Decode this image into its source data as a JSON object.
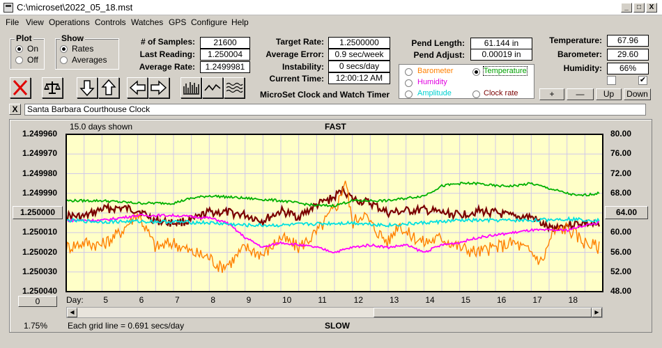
{
  "window": {
    "title": "C:\\microset\\2022_05_18.mst",
    "min": "_",
    "max": "□",
    "close": "X"
  },
  "menu": [
    "File",
    "View",
    "Operations",
    "Controls",
    "Watches",
    "GPS",
    "Configure",
    "Help"
  ],
  "plot_group": {
    "title": "Plot",
    "options": [
      "On",
      "Off"
    ],
    "selected": "On"
  },
  "show_group": {
    "title": "Show",
    "options": [
      "Rates",
      "Averages"
    ],
    "selected": "Rates"
  },
  "readings": {
    "samples_label": "# of Samples:",
    "samples": "21600",
    "last_label": "Last Reading:",
    "last": "1.250004",
    "avg_label": "Average Rate:",
    "avg": "1.2499981",
    "target_label": "Target Rate:",
    "target": "1.2500000",
    "avgerr_label": "Average Error:",
    "avgerr": "0.9 sec/week",
    "instab_label": "Instability:",
    "instab": "0 secs/day",
    "time_label": "Current Time:",
    "time": "12:00:12 AM",
    "pendlen_label": "Pend Length:",
    "pendlen": "61.144 in",
    "pendadj_label": "Pend Adjust:",
    "pendadj": "0.00019 in",
    "temp_label": "Temperature:",
    "temp": "67.96",
    "baro_label": "Barometer:",
    "baro": "29.60",
    "hum_label": "Humidity:",
    "hum": "66%"
  },
  "app_subtitle": "MicroSet Clock and Watch Timer",
  "overlay_options": {
    "barometer": "Barometer",
    "temperature": "Temperature",
    "humidity": "Humidity",
    "amplitude": "Amplitude",
    "clockrate": "Clock rate",
    "selected": "Temperature"
  },
  "step_buttons": [
    "+",
    "—",
    "Up",
    "Down"
  ],
  "clock_name": "Santa Barbara Courthouse Clock",
  "clear_label": "X",
  "colors": {
    "rate": "#7a0000",
    "barometer": "#ff8000",
    "temperature": "#00b000",
    "humidity": "#ff00ff",
    "amplitude": "#00e0e0",
    "plot_bg": "#ffffc8",
    "grid": "#d0c8e8"
  },
  "chart_data": {
    "type": "line",
    "days_shown": "15.0 days shown",
    "top_label": "FAST",
    "bottom_label": "SLOW",
    "x_axis_label": "Day:",
    "x_ticks": [
      "5",
      "6",
      "7",
      "8",
      "9",
      "10",
      "11",
      "12",
      "13",
      "14",
      "15",
      "16",
      "17",
      "18"
    ],
    "xlim": [
      4.0,
      19.0
    ],
    "left_axis": {
      "ticks": [
        "1.249960",
        "1.249970",
        "1.249980",
        "1.249990",
        "1.250000",
        "1.250010",
        "1.250020",
        "1.250030",
        "1.250040"
      ],
      "ylim": [
        1.24996,
        1.25004
      ],
      "inverted": true
    },
    "right_axis": {
      "ticks": [
        "80.00",
        "76.00",
        "72.00",
        "68.00",
        "64.00",
        "60.00",
        "56.00",
        "52.00",
        "48.00"
      ],
      "ylim": [
        48,
        80
      ]
    },
    "left_marker": "1.250000",
    "right_marker": "64.00",
    "bottom_left_value": "0",
    "corner_value": "1.75%",
    "grid_note": "Each grid line = 0.691 secs/day",
    "series": [
      {
        "name": "Rate",
        "axis": "left",
        "color": "#7a0000",
        "x": [
          4.0,
          4.5,
          5.0,
          5.5,
          6.0,
          6.5,
          7.0,
          7.5,
          8.0,
          8.5,
          9.0,
          9.5,
          10.0,
          10.5,
          11.0,
          11.5,
          11.75,
          12.0,
          12.5,
          13.0,
          13.5,
          14.0,
          14.5,
          15.0,
          15.5,
          16.0,
          16.5,
          17.0,
          17.5,
          18.0,
          18.5,
          18.9
        ],
        "y": [
          1.2500015,
          1.250002,
          1.249998,
          1.2499975,
          1.2499985,
          1.250004,
          1.250005,
          1.250004,
          1.2499995,
          1.2499998,
          1.250001,
          1.250004,
          1.249999,
          1.250002,
          1.249996,
          1.249992,
          1.249988,
          1.249993,
          1.249995,
          1.25,
          1.249999,
          1.2499985,
          1.25,
          1.250001,
          1.249999,
          1.25,
          1.250002,
          1.250002,
          1.250008,
          1.250006,
          1.250005,
          1.250007
        ]
      },
      {
        "name": "Barometer",
        "axis": "right",
        "color": "#ff8000",
        "x": [
          4.0,
          4.5,
          5.0,
          5.5,
          6.0,
          6.5,
          7.0,
          7.5,
          8.0,
          8.3,
          8.6,
          9.0,
          9.5,
          10.0,
          10.5,
          11.0,
          11.3,
          11.6,
          11.8,
          12.0,
          12.3,
          12.6,
          13.0,
          13.3,
          13.5,
          14.0,
          14.5,
          15.0,
          15.5,
          16.0,
          16.5,
          17.0,
          17.3,
          17.6,
          18.0,
          18.5,
          18.9
        ],
        "y": [
          57,
          58,
          57.5,
          60,
          64,
          57,
          58,
          56,
          55,
          53,
          54,
          57,
          55.5,
          59,
          57,
          60,
          63,
          66,
          71,
          62,
          64,
          61,
          58,
          62,
          60,
          58,
          59,
          57,
          56,
          57,
          58,
          56,
          54,
          60,
          61,
          58,
          57
        ]
      },
      {
        "name": "Temperature",
        "axis": "right",
        "color": "#00b000",
        "x": [
          4.0,
          5.0,
          6.0,
          7.0,
          7.5,
          8.0,
          9.0,
          10.0,
          10.5,
          11.0,
          11.5,
          12.0,
          12.5,
          13.0,
          13.5,
          14.0,
          14.5,
          15.0,
          15.5,
          16.0,
          16.5,
          17.0,
          17.5,
          18.0,
          18.3,
          18.9
        ],
        "y": [
          66.5,
          66.5,
          66,
          66,
          67,
          67.5,
          67,
          66.5,
          66,
          65.5,
          65.5,
          66.5,
          66.5,
          66.5,
          67,
          67.5,
          69.5,
          70,
          70,
          69.5,
          69.5,
          70,
          69,
          68,
          67.5,
          68
        ]
      },
      {
        "name": "Humidity",
        "axis": "right",
        "color": "#ff00ff",
        "x": [
          4.0,
          5.0,
          6.0,
          7.0,
          8.0,
          8.5,
          9.0,
          9.5,
          10.0,
          10.5,
          11.0,
          11.5,
          12.0,
          12.5,
          13.0,
          13.5,
          14.0,
          14.5,
          15.0,
          15.5,
          16.0,
          16.5,
          17.0,
          17.5,
          18.0,
          18.5,
          18.9
        ],
        "y": [
          62.5,
          62.5,
          63.5,
          63.5,
          63,
          62,
          59,
          57,
          58,
          57.5,
          57,
          56,
          57,
          57.5,
          57,
          57.5,
          56,
          57.5,
          58,
          59,
          59.5,
          60,
          60.5,
          60.5,
          60.5,
          61.5,
          62
        ]
      },
      {
        "name": "Amplitude",
        "axis": "right",
        "color": "#00e0e0",
        "x": [
          4.0,
          5.0,
          6.0,
          7.0,
          8.0,
          9.0,
          10.0,
          11.0,
          12.0,
          13.0,
          14.0,
          15.0,
          16.0,
          17.0,
          18.0,
          18.9
        ],
        "y": [
          62.5,
          62.2,
          62.3,
          62.2,
          62.0,
          61.5,
          61.5,
          61.8,
          62.0,
          61.5,
          62.0,
          62.5,
          62.5,
          62.5,
          62.8,
          62.5
        ]
      }
    ]
  }
}
